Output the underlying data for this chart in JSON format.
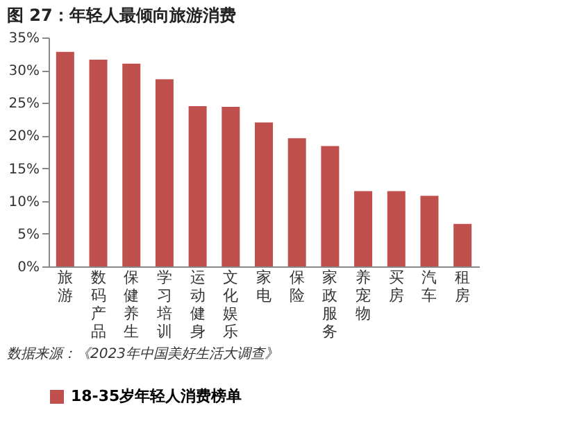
{
  "chart_data": {
    "type": "bar",
    "title": "图 27：年轻人最倾向旅游消费",
    "categories": [
      "旅游",
      "数码产品",
      "保健养生",
      "学习培训",
      "运动健身",
      "文化娱乐",
      "家电",
      "保险",
      "家政服务",
      "养宠物",
      "买房",
      "汽车",
      "租房"
    ],
    "series": [
      {
        "name": "18-35岁年轻人消费榜单",
        "color": "#c0504d",
        "values": [
          32.8,
          31.6,
          31.0,
          28.6,
          24.5,
          24.4,
          22.0,
          19.6,
          18.4,
          11.5,
          11.5,
          10.8,
          6.5
        ]
      }
    ],
    "ylim": [
      0,
      35
    ],
    "yticks": [
      {
        "value": 0,
        "label": "0%"
      },
      {
        "value": 5,
        "label": "5%"
      },
      {
        "value": 10,
        "label": "10%"
      },
      {
        "value": 15,
        "label": "15%"
      },
      {
        "value": 20,
        "label": "20%"
      },
      {
        "value": 25,
        "label": "25%"
      },
      {
        "value": 30,
        "label": "30%"
      },
      {
        "value": 35,
        "label": "35%"
      }
    ],
    "grid": false,
    "legend": "bottom",
    "annotations": [
      "数据来源：《2023年中国美好生活大调查》"
    ]
  }
}
